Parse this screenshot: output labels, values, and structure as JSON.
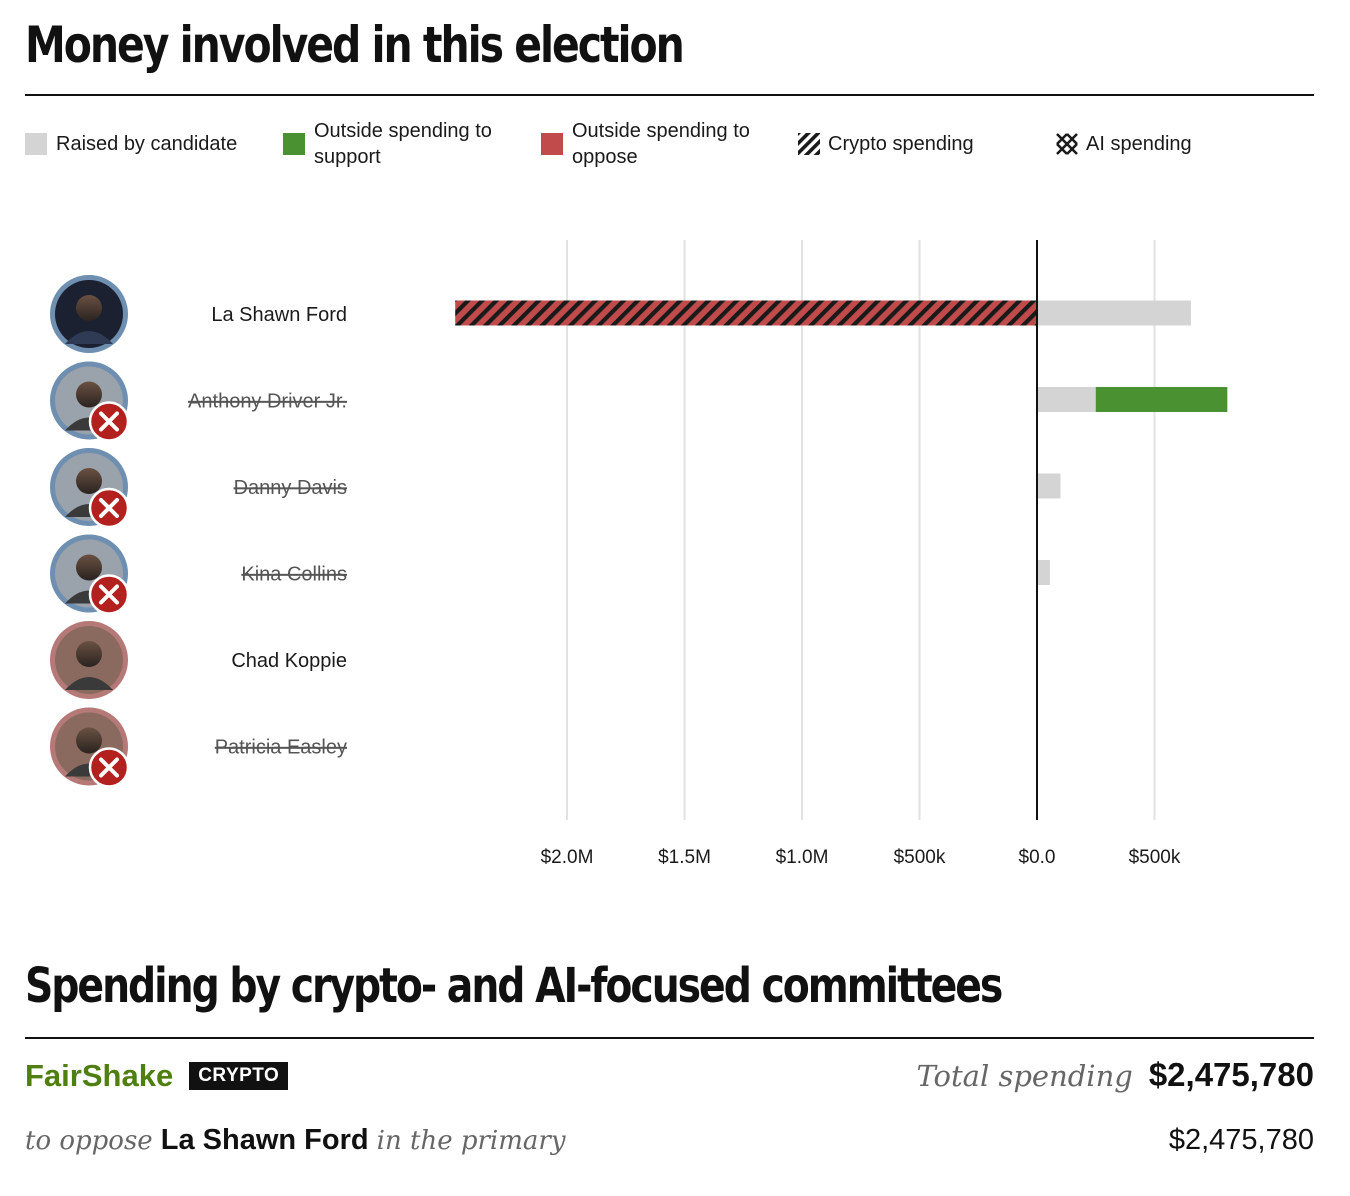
{
  "page": {
    "title": "Money involved in this election",
    "section2_title": "Spending by crypto- and AI-focused committees"
  },
  "legend": {
    "items": [
      {
        "key": "raised",
        "label": "Raised by candidate",
        "color": "#d4d4d4"
      },
      {
        "key": "support",
        "label": "Outside spending to\nsupport",
        "color": "#4a9231"
      },
      {
        "key": "oppose",
        "label": "Outside spending to\noppose",
        "color": "#c14b4b"
      },
      {
        "key": "crypto",
        "label": "Crypto spending",
        "icon": "diagonal-stripes-icon"
      },
      {
        "key": "ai",
        "label": "AI spending",
        "icon": "crosshatch-icon"
      }
    ]
  },
  "chart_data": {
    "type": "bar",
    "orientation": "horizontal-diverging",
    "xlabel": "",
    "ylabel": "",
    "tick_labels": [
      "$2.0M",
      "$1.5M",
      "$1.0M",
      "$500k",
      "$0.0",
      "$500k"
    ],
    "tick_values": [
      -2000000,
      -1500000,
      -1000000,
      -500000,
      0,
      500000
    ],
    "xlim": [
      -2500000,
      700000
    ],
    "grid": true,
    "categories": [
      "La Shawn Ford",
      "Anthony Driver Jr.",
      "Danny Davis",
      "Kina Collins",
      "Chad Koppie",
      "Patricia Easley"
    ],
    "eliminated": [
      false,
      true,
      true,
      true,
      false,
      true
    ],
    "avatar_ring": [
      "#6e8fb0",
      "#6e8fb0",
      "#6e8fb0",
      "#6e8fb0",
      "#b57a78",
      "#b57a78"
    ],
    "series": [
      {
        "name": "Raised by candidate",
        "color": "#d4d4d4",
        "direction": "right",
        "values": [
          655000,
          250000,
          100000,
          55000,
          0,
          0
        ]
      },
      {
        "name": "Outside spending to support",
        "color": "#4a9231",
        "direction": "right",
        "values": [
          0,
          560000,
          0,
          0,
          0,
          0
        ]
      },
      {
        "name": "Outside spending to oppose",
        "color": "#c14b4b",
        "direction": "left",
        "crypto": true,
        "values": [
          2475780,
          0,
          0,
          0,
          0,
          0
        ]
      }
    ]
  },
  "committees": {
    "name": "FairShake",
    "badge": "CRYPTO",
    "total_label": "Total spending",
    "total_value": "$2,475,780",
    "detail": {
      "prefix": "to oppose",
      "candidate": "La Shawn Ford",
      "suffix": "in the primary",
      "amount": "$2,475,780"
    }
  }
}
